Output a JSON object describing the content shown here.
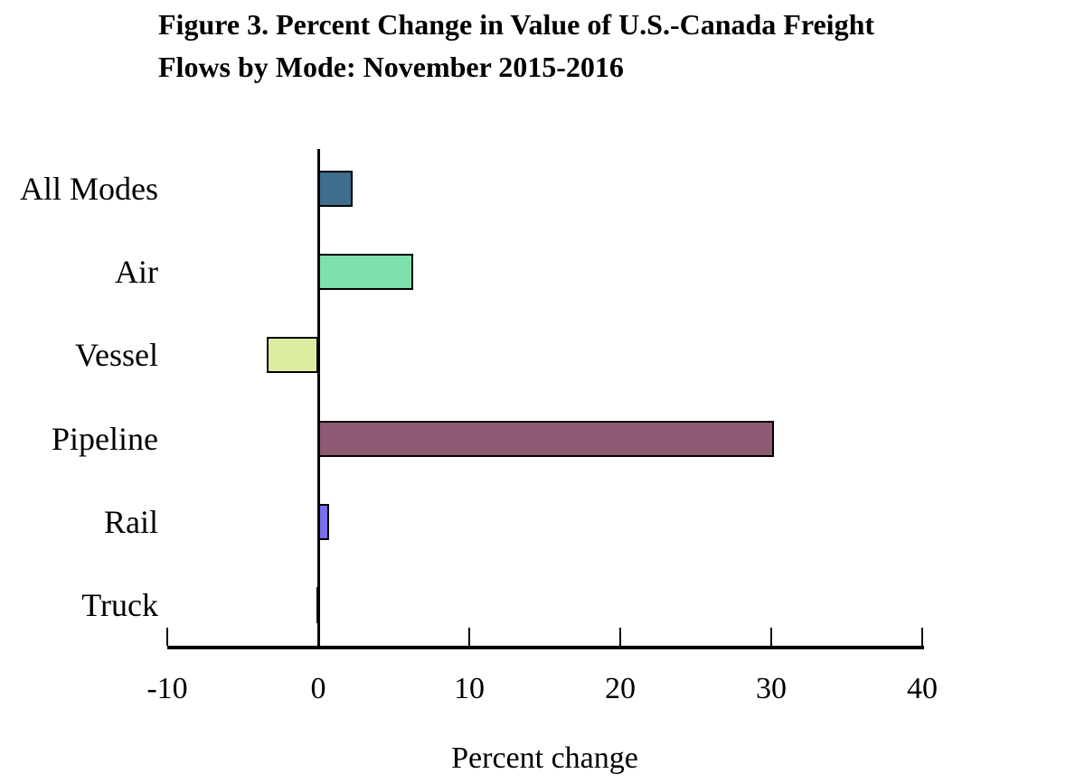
{
  "figure": {
    "title_line1": "Figure 3.  Percent Change in Value of U.S.-Canada Freight",
    "title_line2": "Flows by Mode: November 2015-2016"
  },
  "chart_data": {
    "type": "bar",
    "orientation": "horizontal",
    "title": "Figure 3. Percent Change in Value of U.S.-Canada Freight Flows by Mode: November 2015-2016",
    "categories": [
      "All Modes",
      "Air",
      "Vessel",
      "Pipeline",
      "Rail",
      "Truck"
    ],
    "values": [
      2.3,
      6.3,
      -3.4,
      30.2,
      0.7,
      -0.1
    ],
    "bar_colors": [
      "#3f6d8e",
      "#7ee0aa",
      "#dceda2",
      "#8c5a72",
      "#7b6ef0",
      "#1a1a1a"
    ],
    "bar_outline_color": "#000000",
    "axis_color": "#000000",
    "xlabel": "Percent change",
    "ylabel": "",
    "xlim": [
      -10,
      40
    ],
    "x_ticks": [
      -10,
      0,
      10,
      20,
      30,
      40
    ],
    "grid": false,
    "legend": "none",
    "background_color": "#ffffff"
  }
}
